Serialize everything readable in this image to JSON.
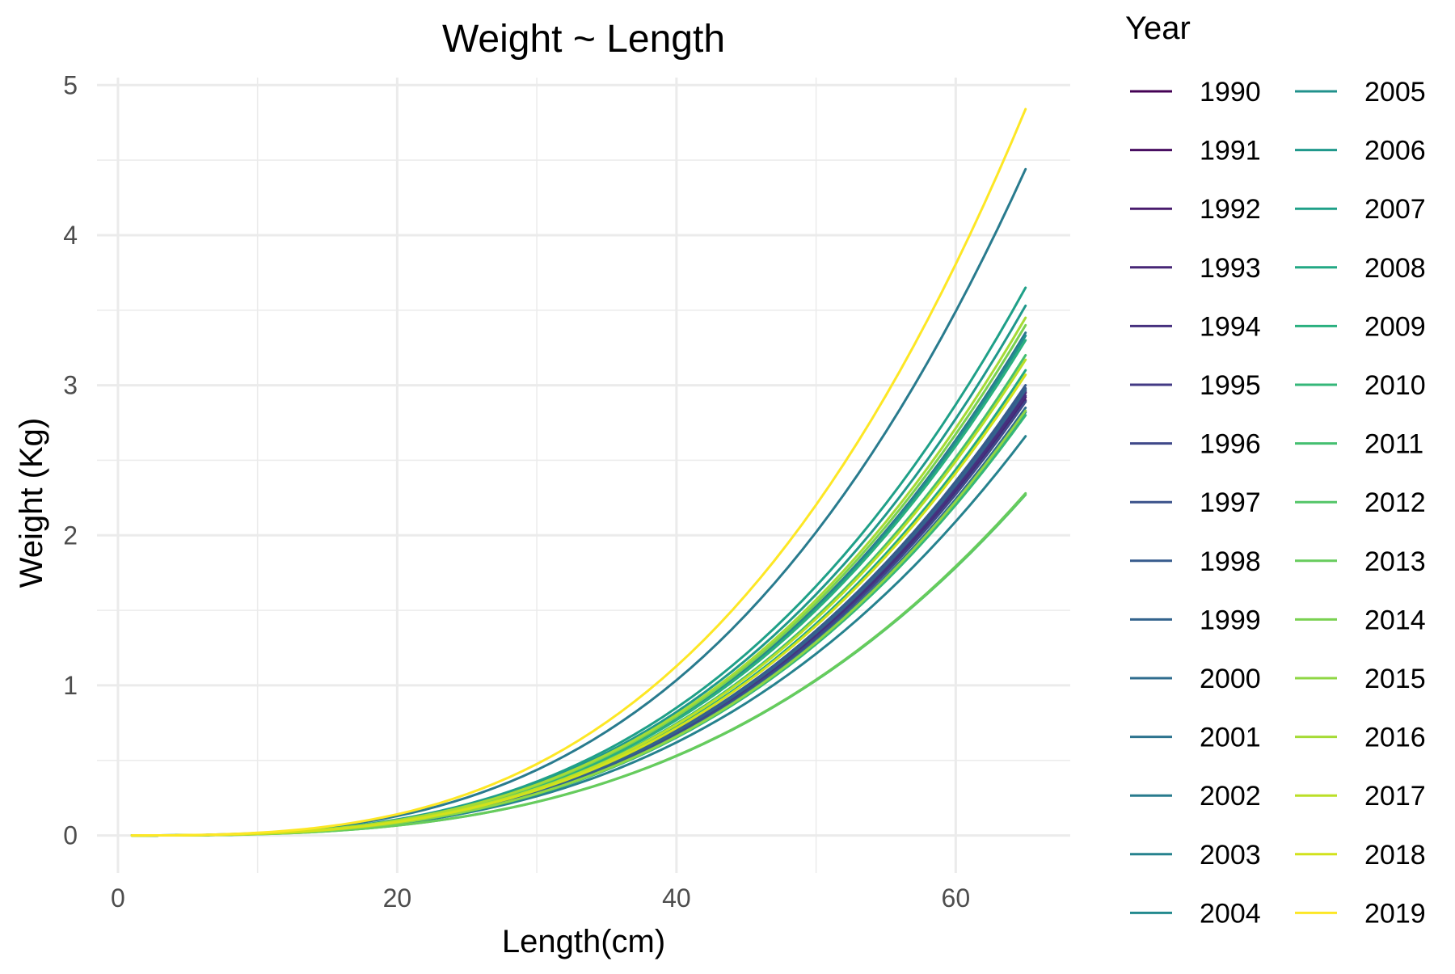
{
  "chart_data": {
    "type": "line",
    "title": "Weight ~ Length",
    "xlabel": "Length(cm)",
    "ylabel": "Weight (Kg)",
    "xlim": [
      -1.5,
      68.2
    ],
    "ylim": [
      -0.25,
      5.05
    ],
    "x_ticks": [
      0,
      20,
      40,
      60
    ],
    "y_ticks": [
      0,
      1,
      2,
      3,
      4,
      5
    ],
    "grid": true,
    "legend": {
      "title": "Year",
      "placement": "right",
      "columns": 2
    },
    "x_range": [
      1,
      65
    ],
    "series": [
      {
        "name": "1990",
        "color": "#440154",
        "end_weight": 2.95
      },
      {
        "name": "1991",
        "color": "#470E61",
        "end_weight": 2.92
      },
      {
        "name": "1992",
        "color": "#481B6D",
        "end_weight": 2.95
      },
      {
        "name": "1993",
        "color": "#472676",
        "end_weight": 2.9
      },
      {
        "name": "1994",
        "color": "#46307E",
        "end_weight": 2.93
      },
      {
        "name": "1995",
        "color": "#433A84",
        "end_weight": 2.96
      },
      {
        "name": "1996",
        "color": "#3F4889",
        "end_weight": 2.89
      },
      {
        "name": "1997",
        "color": "#3B528B",
        "end_weight": 2.98
      },
      {
        "name": "1998",
        "color": "#375B8D",
        "end_weight": 3.0
      },
      {
        "name": "1999",
        "color": "#33638D",
        "end_weight": 2.97
      },
      {
        "name": "2000",
        "color": "#2F6C8E",
        "end_weight": 2.85
      },
      {
        "name": "2001",
        "color": "#2C738E",
        "end_weight": 3.35
      },
      {
        "name": "2002",
        "color": "#297B8E",
        "end_weight": 4.44
      },
      {
        "name": "2003",
        "color": "#26828E",
        "end_weight": 2.66
      },
      {
        "name": "2004",
        "color": "#23898E",
        "end_weight": 2.82
      },
      {
        "name": "2005",
        "color": "#21918C",
        "end_weight": 3.33
      },
      {
        "name": "2006",
        "color": "#1F988B",
        "end_weight": 3.53
      },
      {
        "name": "2007",
        "color": "#1FA088",
        "end_weight": 3.65
      },
      {
        "name": "2008",
        "color": "#22A884",
        "end_weight": 3.1
      },
      {
        "name": "2009",
        "color": "#2AB07F",
        "end_weight": 3.3
      },
      {
        "name": "2010",
        "color": "#35B779",
        "end_weight": 2.8
      },
      {
        "name": "2011",
        "color": "#44BF70",
        "end_weight": 3.2
      },
      {
        "name": "2012",
        "color": "#54C568",
        "end_weight": 2.27
      },
      {
        "name": "2013",
        "color": "#67CC5C",
        "end_weight": 2.28
      },
      {
        "name": "2014",
        "color": "#7AD151",
        "end_weight": 3.4
      },
      {
        "name": "2015",
        "color": "#8FD744",
        "end_weight": 2.83
      },
      {
        "name": "2016",
        "color": "#A5DB36",
        "end_weight": 3.45
      },
      {
        "name": "2017",
        "color": "#BBDF27",
        "end_weight": 3.17
      },
      {
        "name": "2018",
        "color": "#D2E21B",
        "end_weight": 3.07
      },
      {
        "name": "2019",
        "color": "#FDE725",
        "end_weight": 4.84
      }
    ]
  }
}
